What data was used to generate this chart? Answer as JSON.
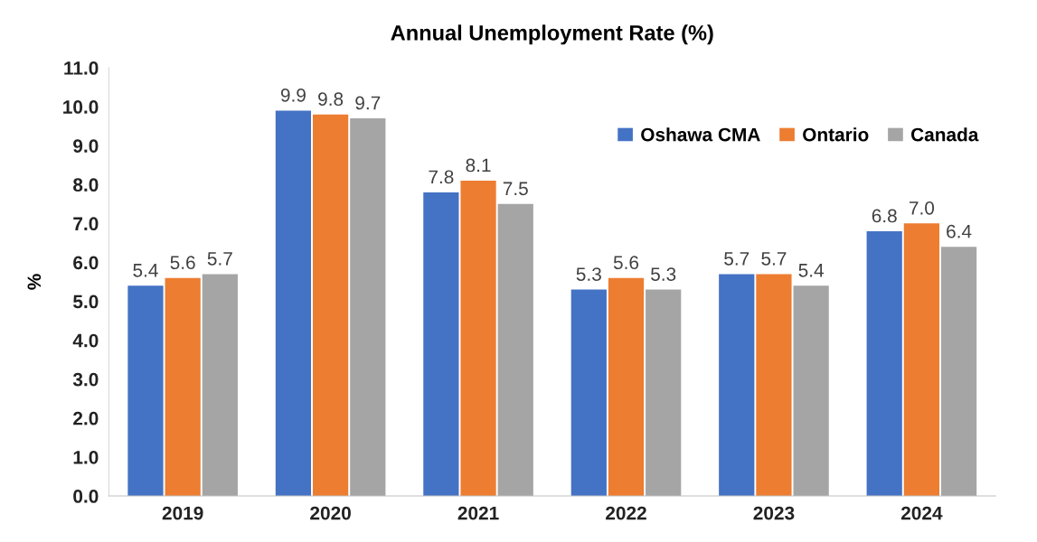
{
  "chart_data": {
    "type": "bar",
    "title": "Annual Unemployment Rate (%)",
    "ylabel": "%",
    "categories": [
      "2019",
      "2020",
      "2021",
      "2022",
      "2023",
      "2024"
    ],
    "series": [
      {
        "name": "Oshawa CMA",
        "color": "#4472c4",
        "values": [
          5.4,
          9.9,
          7.8,
          5.3,
          5.7,
          6.8
        ],
        "value_labels": [
          "5.4",
          "9.9",
          "7.8",
          "5.3",
          "5.7",
          "6.8"
        ]
      },
      {
        "name": "Ontario",
        "color": "#ed7d31",
        "values": [
          5.6,
          9.8,
          8.1,
          5.6,
          5.7,
          7.0
        ],
        "value_labels": [
          "5.6",
          "9.8",
          "8.1",
          "5.6",
          "5.7",
          "7.0"
        ]
      },
      {
        "name": "Canada",
        "color": "#a5a5a5",
        "values": [
          5.7,
          9.7,
          7.5,
          5.3,
          5.4,
          6.4
        ],
        "value_labels": [
          "5.7",
          "9.7",
          "7.5",
          "5.3",
          "5.4",
          "6.4"
        ]
      }
    ],
    "ylim": [
      0,
      11
    ],
    "yticks": [
      {
        "value": 0,
        "label": "0.0"
      },
      {
        "value": 1,
        "label": "1.0"
      },
      {
        "value": 2,
        "label": "2.0"
      },
      {
        "value": 3,
        "label": "3.0"
      },
      {
        "value": 4,
        "label": "4.0"
      },
      {
        "value": 5,
        "label": "5.0"
      },
      {
        "value": 6,
        "label": "6.0"
      },
      {
        "value": 7,
        "label": "7.0"
      },
      {
        "value": 8,
        "label": "8.0"
      },
      {
        "value": 9,
        "label": "9.0"
      },
      {
        "value": 10,
        "label": "10.0"
      },
      {
        "value": 11,
        "label": "11.0"
      }
    ],
    "grid": false,
    "legend": "top right"
  }
}
